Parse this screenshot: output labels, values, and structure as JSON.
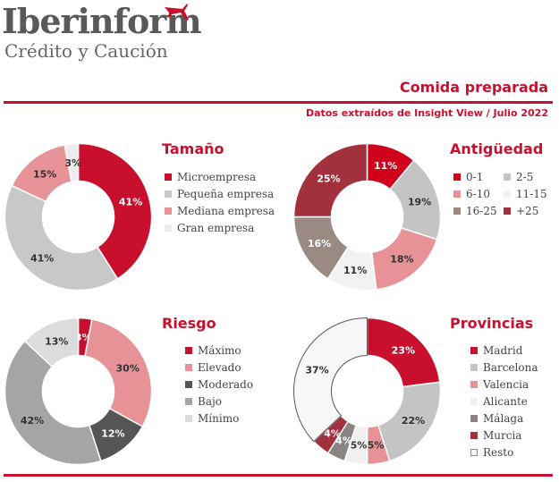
{
  "brand": {
    "name": "Iberinform",
    "subtitle": "Crédito y Caución"
  },
  "header": {
    "title": "Comida preparada",
    "subtitle": "Datos extraídos de Insight View / Julio 2022"
  },
  "chart_data": [
    {
      "type": "pie",
      "title": "Tamaño",
      "categories": [
        "Microempresa",
        "Pequeña empresa",
        "Mediana empresa",
        "Gran empresa"
      ],
      "values": [
        41,
        41,
        15,
        3
      ],
      "labels": [
        "41%",
        "41%",
        "15%",
        "3%"
      ],
      "colors": [
        "#c8102e",
        "#c8c8c8",
        "#e69296",
        "#ececec"
      ],
      "legend": "right"
    },
    {
      "type": "pie",
      "title": "Antigüedad",
      "categories": [
        "0-1",
        "2-5",
        "6-10",
        "11-15",
        "16-25",
        "+25"
      ],
      "values": [
        11,
        19,
        18,
        11,
        16,
        25
      ],
      "labels": [
        "11%",
        "19%",
        "18%",
        "11%",
        "16%",
        "25%"
      ],
      "colors": [
        "#d0021b",
        "#c4c4c4",
        "#e69296",
        "#f2f2f2",
        "#9a8a83",
        "#a3313d"
      ],
      "legend": "right"
    },
    {
      "type": "pie",
      "title": "Riesgo",
      "categories": [
        "Máximo",
        "Elevado",
        "Moderado",
        "Bajo",
        "Mínimo"
      ],
      "values": [
        3,
        30,
        12,
        42,
        13
      ],
      "labels": [
        "3%",
        "30%",
        "12%",
        "42%",
        "13%"
      ],
      "colors": [
        "#c8102e",
        "#e69296",
        "#555555",
        "#a5a5a5",
        "#dcdcdc"
      ],
      "legend": "right"
    },
    {
      "type": "pie",
      "title": "Provincias",
      "categories": [
        "Madrid",
        "Barcelona",
        "Valencia",
        "Alicante",
        "Málaga",
        "Murcia",
        "Resto"
      ],
      "values": [
        23,
        22,
        5,
        5,
        4,
        4,
        37
      ],
      "labels": [
        "23%",
        "22%",
        "5%",
        "5%",
        "4%",
        "4%",
        "37%"
      ],
      "colors": [
        "#c8102e",
        "#c4c4c4",
        "#e69296",
        "#f0f0f0",
        "#8a8583",
        "#a3313d",
        "#f7f7f7"
      ],
      "legend": "right"
    }
  ]
}
